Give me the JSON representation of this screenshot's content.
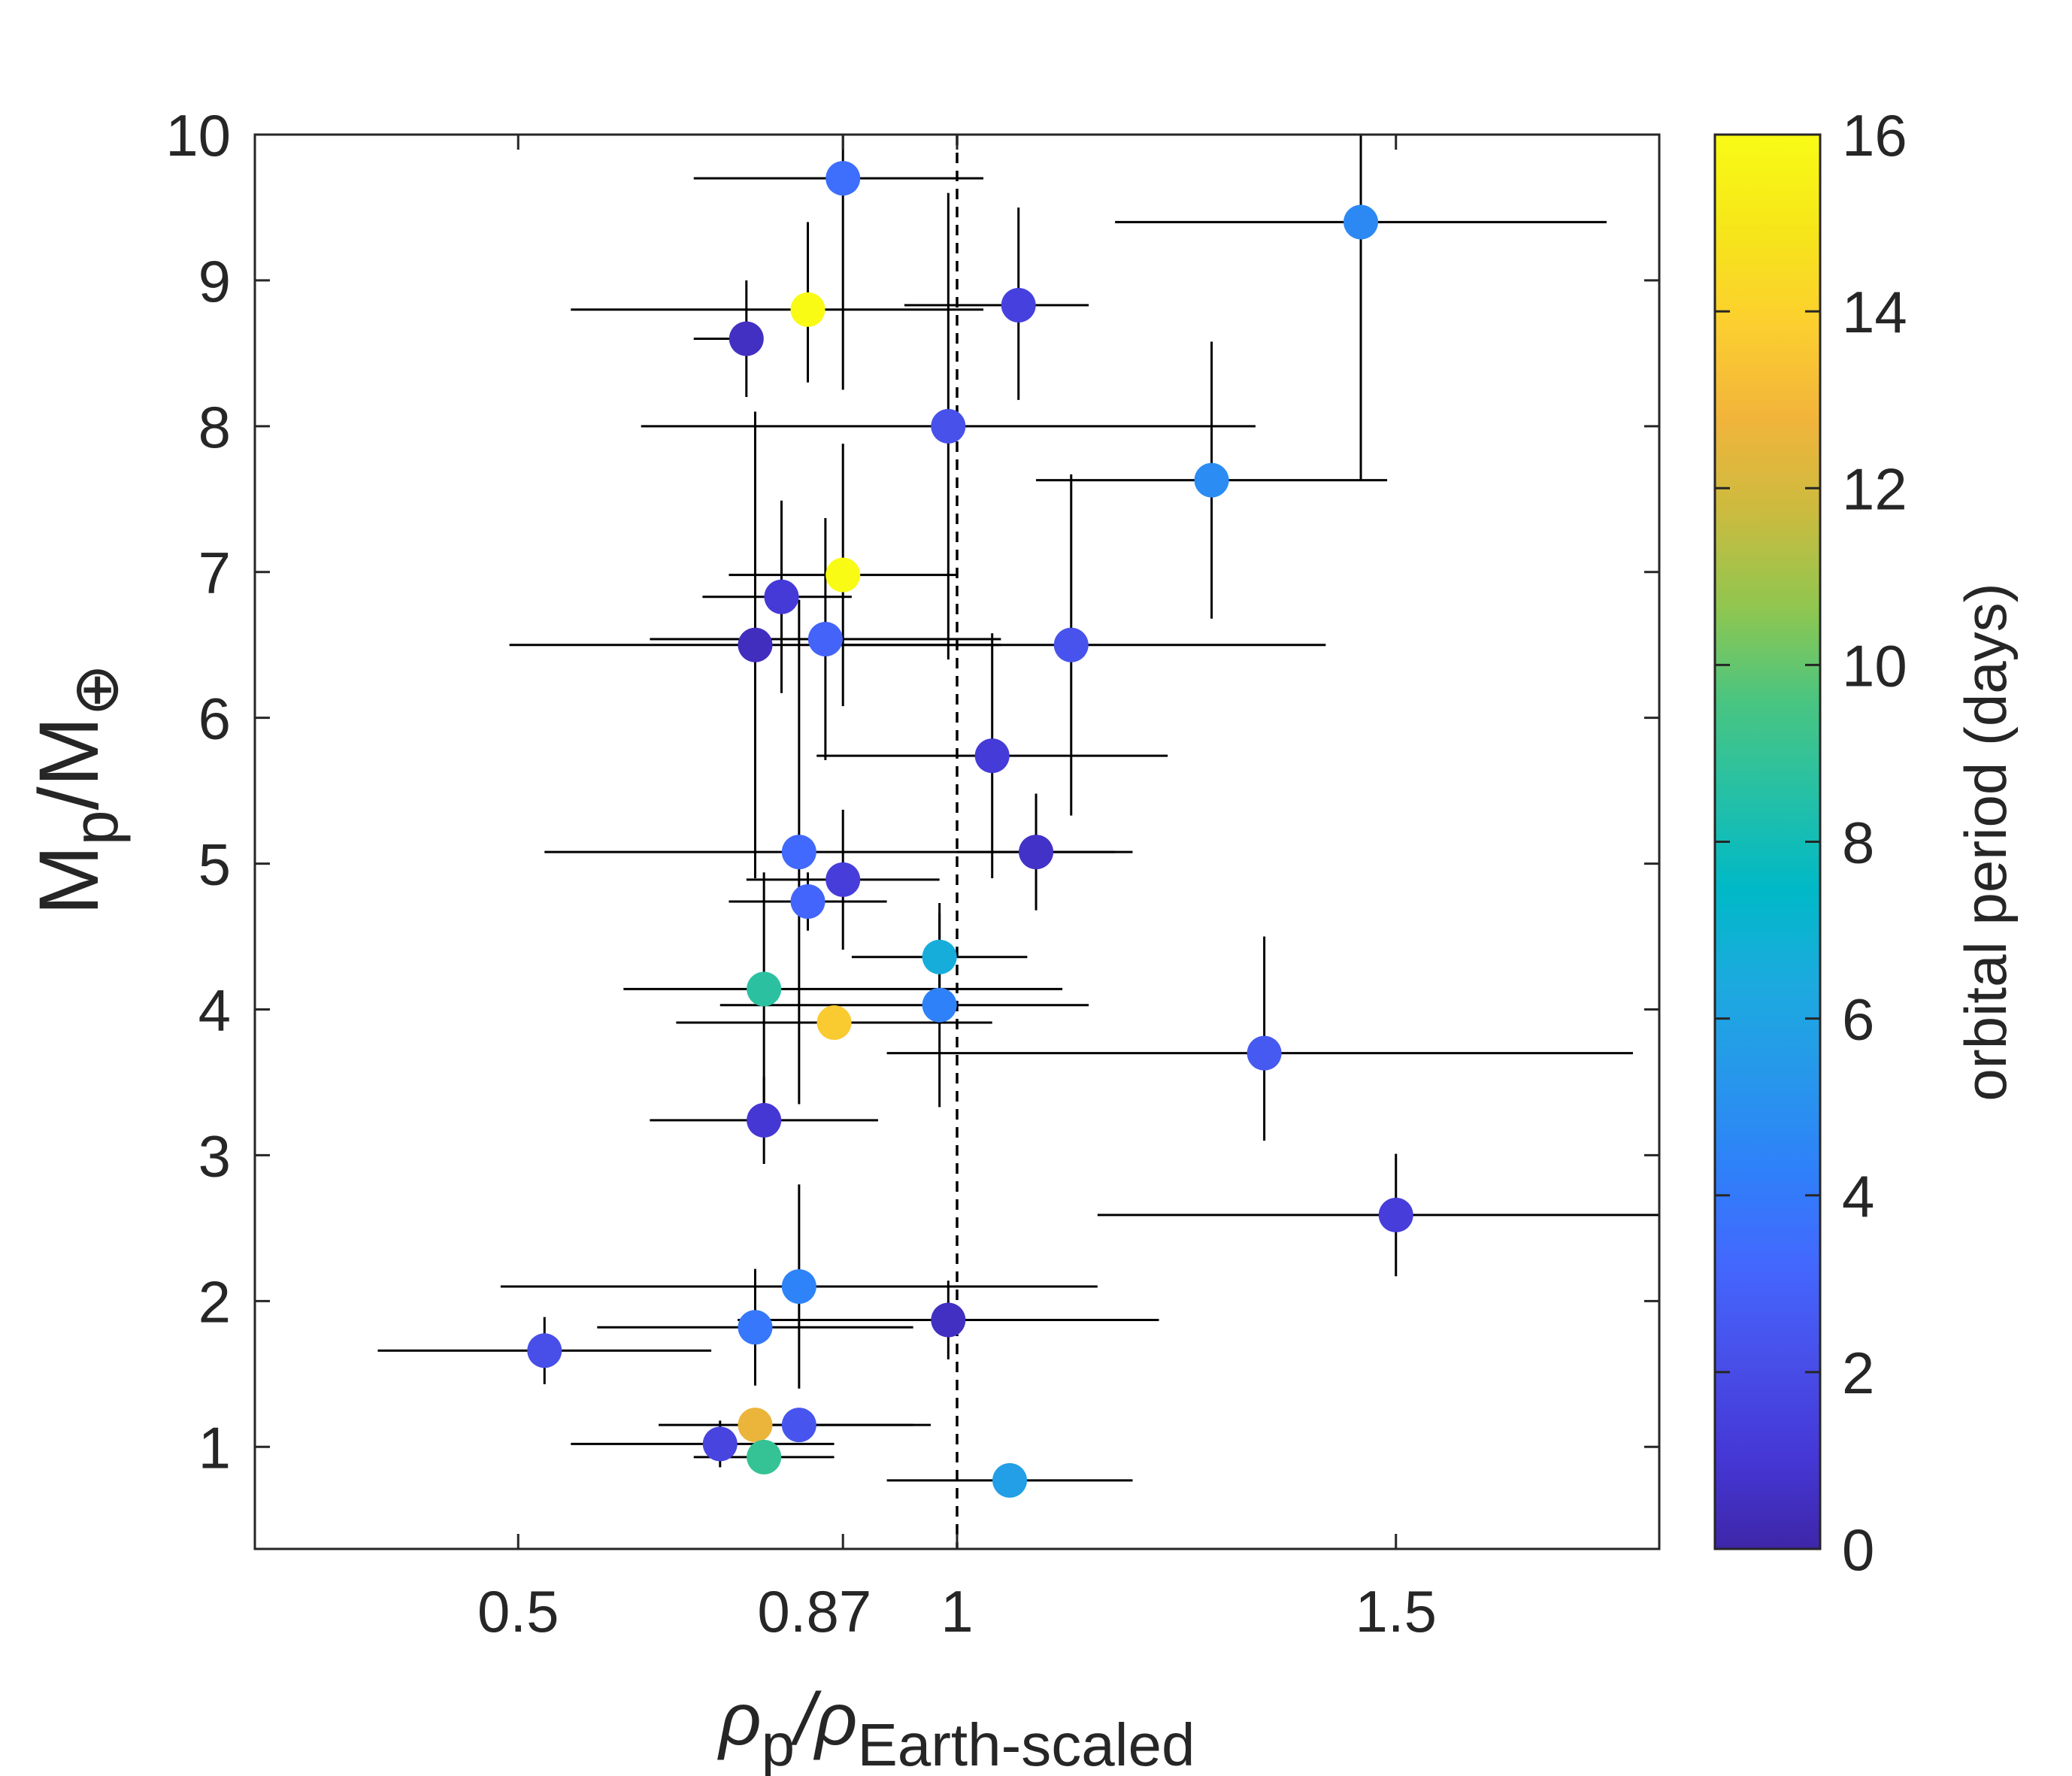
{
  "chart_data": {
    "type": "scatter",
    "title": "",
    "xlabel": {
      "base": "ρ",
      "sub1": "p",
      "slash": "/ρ",
      "sub2": "Earth-scaled"
    },
    "ylabel": {
      "base": "M",
      "sub1": "p",
      "slash": "/M",
      "sub2": "⊕"
    },
    "xlim": [
      0.2,
      1.8
    ],
    "ylim": [
      0.3,
      10
    ],
    "xticks": [
      {
        "value": 0.5,
        "label": "0.5"
      },
      {
        "value": 0.87,
        "label": "0.87"
      },
      {
        "value": 1.0,
        "label": "1"
      },
      {
        "value": 1.5,
        "label": "1.5"
      }
    ],
    "yticks": [
      {
        "value": 1,
        "label": "1"
      },
      {
        "value": 2,
        "label": "2"
      },
      {
        "value": 3,
        "label": "3"
      },
      {
        "value": 4,
        "label": "4"
      },
      {
        "value": 5,
        "label": "5"
      },
      {
        "value": 6,
        "label": "6"
      },
      {
        "value": 7,
        "label": "7"
      },
      {
        "value": 8,
        "label": "8"
      },
      {
        "value": 9,
        "label": "9"
      },
      {
        "value": 10,
        "label": "10"
      }
    ],
    "reference_line": {
      "x": 1.0,
      "style": "dashed"
    },
    "grid": false,
    "colorbar": {
      "label": "orbital period (days)",
      "range": [
        0,
        16
      ],
      "ticks": [
        {
          "value": 0,
          "label": "0"
        },
        {
          "value": 2,
          "label": "2"
        },
        {
          "value": 4,
          "label": "4"
        },
        {
          "value": 6,
          "label": "6"
        },
        {
          "value": 8,
          "label": "8"
        },
        {
          "value": 10,
          "label": "10"
        },
        {
          "value": 12,
          "label": "12"
        },
        {
          "value": 14,
          "label": "14"
        },
        {
          "value": 16,
          "label": "16"
        }
      ],
      "colormap": [
        "#3e26a8",
        "#4538d7",
        "#484fe9",
        "#4367fd",
        "#2f80fa",
        "#2797eb",
        "#1caadf",
        "#00b9c7",
        "#25c0a6",
        "#4ac580",
        "#91c64f",
        "#cbbb3f",
        "#f2b43b",
        "#fccf2f",
        "#f6e619",
        "#f9fb15"
      ]
    },
    "points": [
      {
        "x": 0.87,
        "y": 9.7,
        "xerr": [
          0.17,
          0.16
        ],
        "yerr": [
          1.45,
          0.3
        ],
        "period": 3.5
      },
      {
        "x": 1.46,
        "y": 9.4,
        "xerr": [
          0.28,
          0.28
        ],
        "yerr": [
          1.77,
          0.6
        ],
        "period": 4.7
      },
      {
        "x": 0.83,
        "y": 8.8,
        "xerr": [
          0.27,
          0.2
        ],
        "yerr": [
          0.5,
          0.6
        ],
        "period": 16
      },
      {
        "x": 1.07,
        "y": 8.83,
        "xerr": [
          0.13,
          0.08
        ],
        "yerr": [
          0.65,
          0.67
        ],
        "period": 1.5
      },
      {
        "x": 0.76,
        "y": 8.6,
        "xerr": [
          0.06,
          0.01
        ],
        "yerr": [
          0.4,
          0.4
        ],
        "period": 0.6
      },
      {
        "x": 0.99,
        "y": 8.0,
        "xerr": [
          0.35,
          0.35
        ],
        "yerr": [
          1.6,
          1.6
        ],
        "period": 2.2
      },
      {
        "x": 1.29,
        "y": 7.63,
        "xerr": [
          0.2,
          0.2
        ],
        "yerr": [
          0.95,
          0.95
        ],
        "period": 4.8
      },
      {
        "x": 0.87,
        "y": 6.98,
        "xerr": [
          0.13,
          0.13
        ],
        "yerr": [
          0.9,
          0.9
        ],
        "period": 16
      },
      {
        "x": 0.8,
        "y": 6.83,
        "xerr": [
          0.09,
          0.08
        ],
        "yerr": [
          0.66,
          0.66
        ],
        "period": 1.1
      },
      {
        "x": 0.77,
        "y": 6.5,
        "xerr": [
          0.28,
          0.28
        ],
        "yerr": [
          1.6,
          1.6
        ],
        "period": 0.5
      },
      {
        "x": 0.85,
        "y": 6.54,
        "xerr": [
          0.2,
          0.2
        ],
        "yerr": [
          0.83,
          0.83
        ],
        "period": 3.0
      },
      {
        "x": 1.13,
        "y": 6.5,
        "xerr": [
          0.28,
          0.29
        ],
        "yerr": [
          1.17,
          1.17
        ],
        "period": 2.3
      },
      {
        "x": 1.04,
        "y": 5.74,
        "xerr": [
          0.2,
          0.2
        ],
        "yerr": [
          0.84,
          0.84
        ],
        "period": 1.2
      },
      {
        "x": 0.82,
        "y": 5.08,
        "xerr": [
          0.29,
          0.38
        ],
        "yerr": [
          1.73,
          1.73
        ],
        "period": 3.3
      },
      {
        "x": 1.09,
        "y": 5.08,
        "xerr": [
          0.09,
          0.09
        ],
        "yerr": [
          0.4,
          0.4
        ],
        "period": 0.7
      },
      {
        "x": 0.87,
        "y": 4.89,
        "xerr": [
          0.11,
          0.11
        ],
        "yerr": [
          0.48,
          0.48
        ],
        "period": 1.3
      },
      {
        "x": 0.83,
        "y": 4.74,
        "xerr": [
          0.09,
          0.09
        ],
        "yerr": [
          0.2,
          0.2
        ],
        "period": 3.1
      },
      {
        "x": 0.98,
        "y": 4.36,
        "xerr": [
          0.1,
          0.1
        ],
        "yerr": [
          0.3,
          0.3
        ],
        "period": 6.6
      },
      {
        "x": 0.78,
        "y": 4.14,
        "xerr": [
          0.16,
          0.34
        ],
        "yerr": [
          0.8,
          0.8
        ],
        "period": 8.7
      },
      {
        "x": 0.98,
        "y": 4.03,
        "xerr": [
          0.25,
          0.17
        ],
        "yerr": [
          0.7,
          0.7
        ],
        "period": 4.3
      },
      {
        "x": 0.86,
        "y": 3.91,
        "xerr": [
          0.18,
          0.18
        ],
        "yerr": [
          0.1,
          0.1
        ],
        "period": 13.7
      },
      {
        "x": 1.35,
        "y": 3.7,
        "xerr": [
          0.43,
          0.42
        ],
        "yerr": [
          0.6,
          0.8
        ],
        "period": 2.6
      },
      {
        "x": 0.78,
        "y": 3.24,
        "xerr": [
          0.13,
          0.13
        ],
        "yerr": [
          0.3,
          0.3
        ],
        "period": 1.0
      },
      {
        "x": 1.5,
        "y": 2.59,
        "xerr": [
          0.34,
          0.3
        ],
        "yerr": [
          0.42,
          0.42
        ],
        "period": 1.3
      },
      {
        "x": 0.82,
        "y": 2.1,
        "xerr": [
          0.34,
          0.34
        ],
        "yerr": [
          0.7,
          0.7
        ],
        "period": 4.4
      },
      {
        "x": 0.77,
        "y": 1.82,
        "xerr": [
          0.18,
          0.18
        ],
        "yerr": [
          0.4,
          0.4
        ],
        "period": 3.9
      },
      {
        "x": 0.99,
        "y": 1.87,
        "xerr": [
          0.24,
          0.24
        ],
        "yerr": [
          0.27,
          0.27
        ],
        "period": 0.6
      },
      {
        "x": 0.53,
        "y": 1.66,
        "xerr": [
          0.19,
          0.19
        ],
        "yerr": [
          0.23,
          0.23
        ],
        "period": 2.1
      },
      {
        "x": 0.77,
        "y": 1.15,
        "xerr": [
          0.11,
          0.2
        ],
        "yerr": [
          0.1,
          0.1
        ],
        "period": 12.6
      },
      {
        "x": 0.82,
        "y": 1.15,
        "xerr": [
          0.07,
          0.13
        ],
        "yerr": [
          0.1,
          0.1
        ],
        "period": 2.4
      },
      {
        "x": 0.73,
        "y": 1.02,
        "xerr": [
          0.17,
          0.13
        ],
        "yerr": [
          0.16,
          0.16
        ],
        "period": 1.6
      },
      {
        "x": 0.78,
        "y": 0.93,
        "xerr": [
          0.08,
          0.08
        ],
        "yerr": [
          0.05,
          0.05
        ],
        "period": 9.0
      },
      {
        "x": 1.06,
        "y": 0.77,
        "xerr": [
          0.14,
          0.14
        ],
        "yerr": [
          0.05,
          0.05
        ],
        "period": 5.8
      }
    ]
  }
}
